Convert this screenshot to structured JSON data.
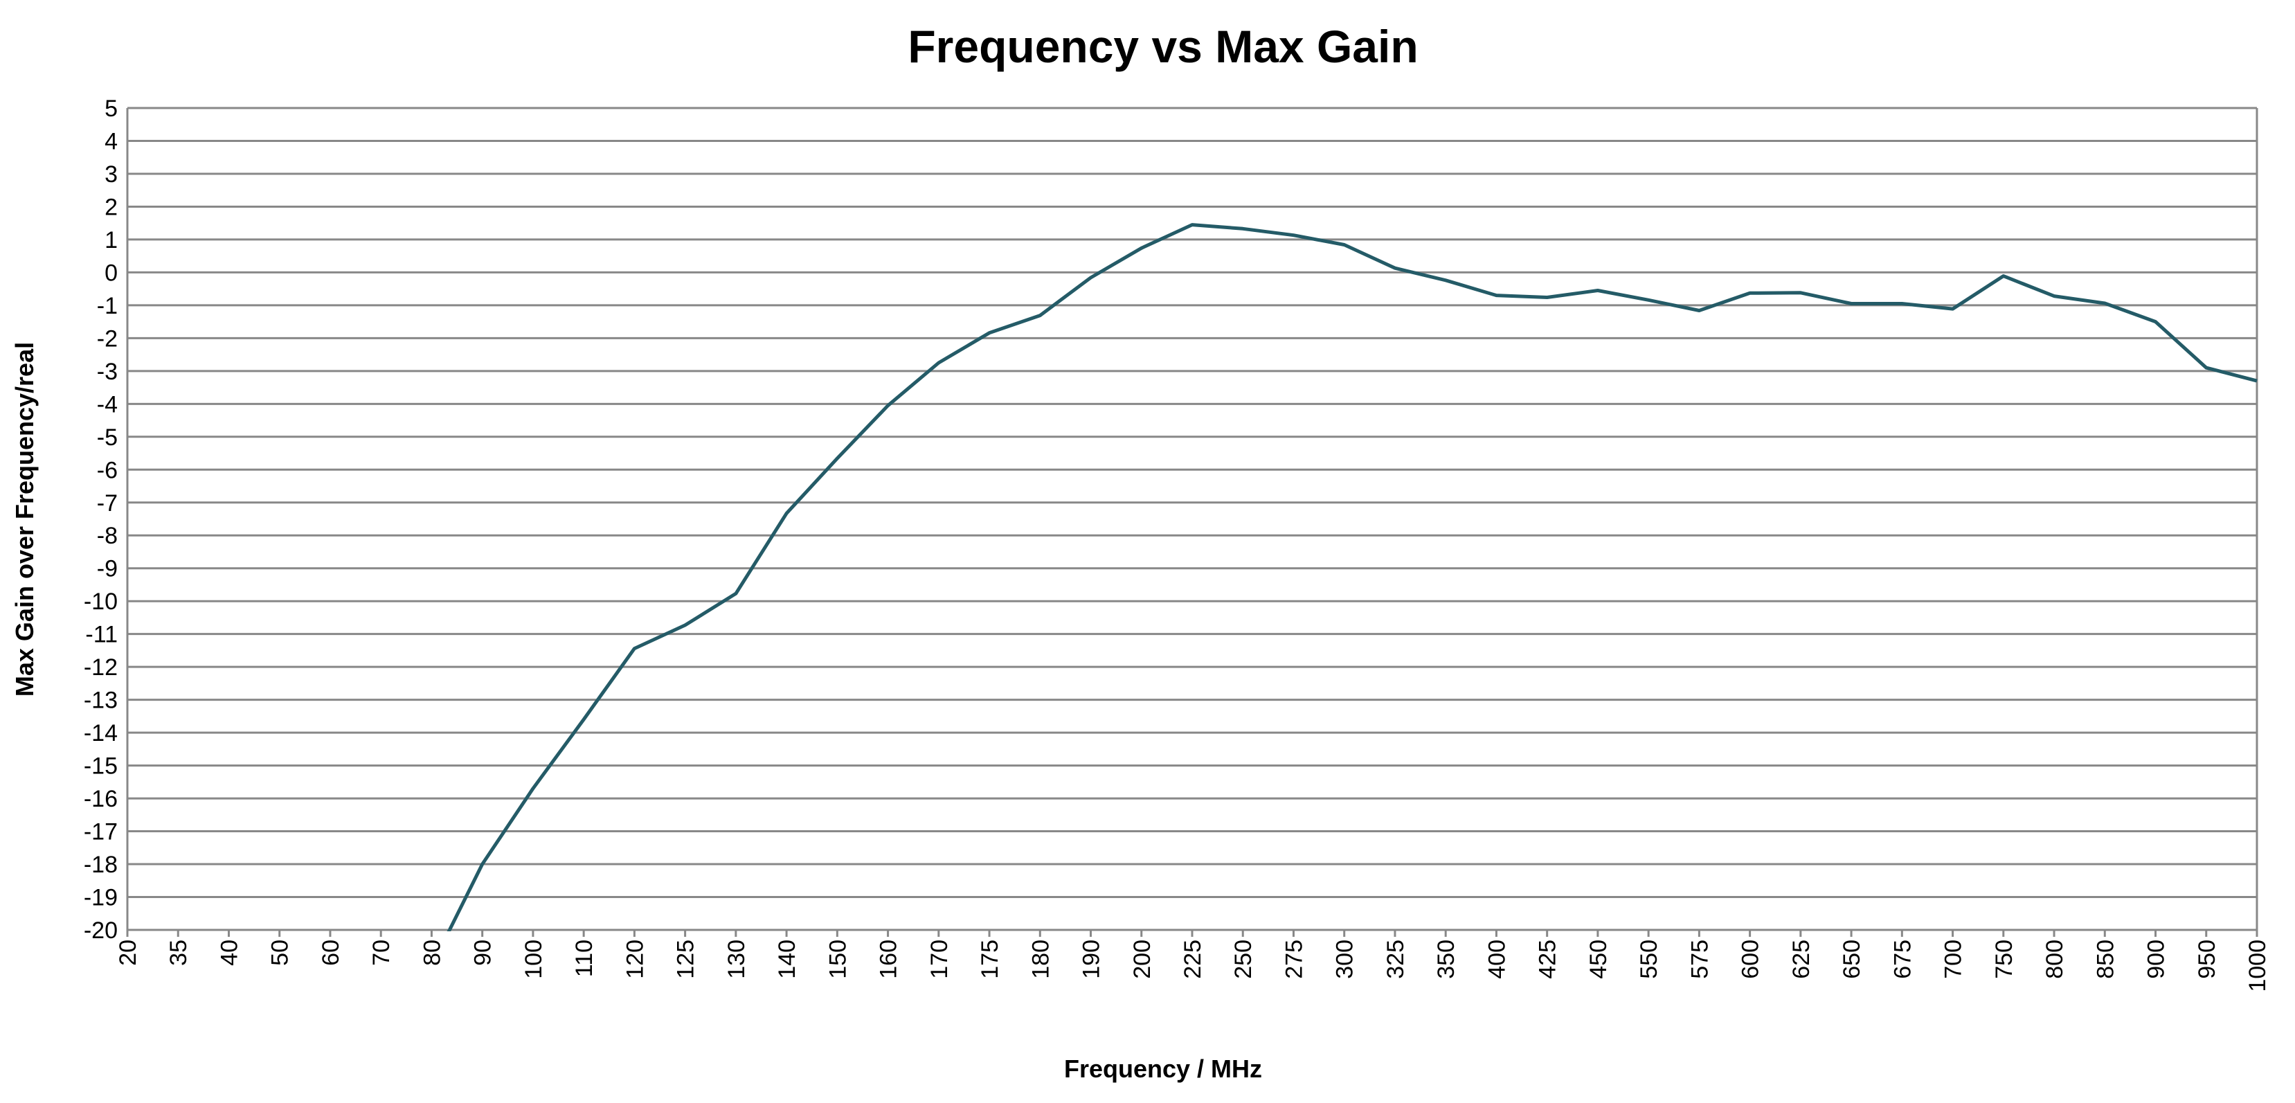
{
  "chart_data": {
    "type": "line",
    "title": "Frequency vs Max Gain",
    "xlabel": "Frequency / MHz",
    "ylabel": "Max Gain over Frequency/real",
    "ylim": [
      -20,
      5
    ],
    "yticks": [
      5,
      4,
      3,
      2,
      1,
      0,
      -1,
      -2,
      -3,
      -4,
      -5,
      -6,
      -7,
      -8,
      -9,
      -10,
      -11,
      -12,
      -13,
      -14,
      -15,
      -16,
      -17,
      -18,
      -19,
      -20
    ],
    "grid": true,
    "legend": "none",
    "categories": [
      "20",
      "35",
      "40",
      "50",
      "60",
      "70",
      "80",
      "90",
      "100",
      "110",
      "120",
      "125",
      "130",
      "140",
      "150",
      "160",
      "170",
      "175",
      "180",
      "190",
      "200",
      "225",
      "250",
      "275",
      "300",
      "325",
      "350",
      "400",
      "425",
      "450",
      "550",
      "575",
      "600",
      "625",
      "650",
      "675",
      "700",
      "750",
      "800",
      "850",
      "900",
      "950",
      "1000"
    ],
    "series": [
      {
        "name": "Max Gain",
        "color": "#245b67",
        "values": [
          null,
          null,
          null,
          null,
          null,
          null,
          -21.1,
          -18.0,
          -15.7,
          -13.6,
          -11.44,
          -10.73,
          -9.77,
          -7.33,
          -5.66,
          -4.05,
          -2.75,
          -1.84,
          -1.31,
          -0.16,
          0.74,
          1.45,
          1.33,
          1.13,
          0.84,
          0.13,
          -0.24,
          -0.7,
          -0.76,
          -0.55,
          -0.84,
          -1.16,
          -0.63,
          -0.62,
          -0.95,
          -0.95,
          -1.11,
          -0.11,
          -0.72,
          -0.94,
          -1.5,
          -2.9,
          -3.3
        ]
      }
    ]
  }
}
